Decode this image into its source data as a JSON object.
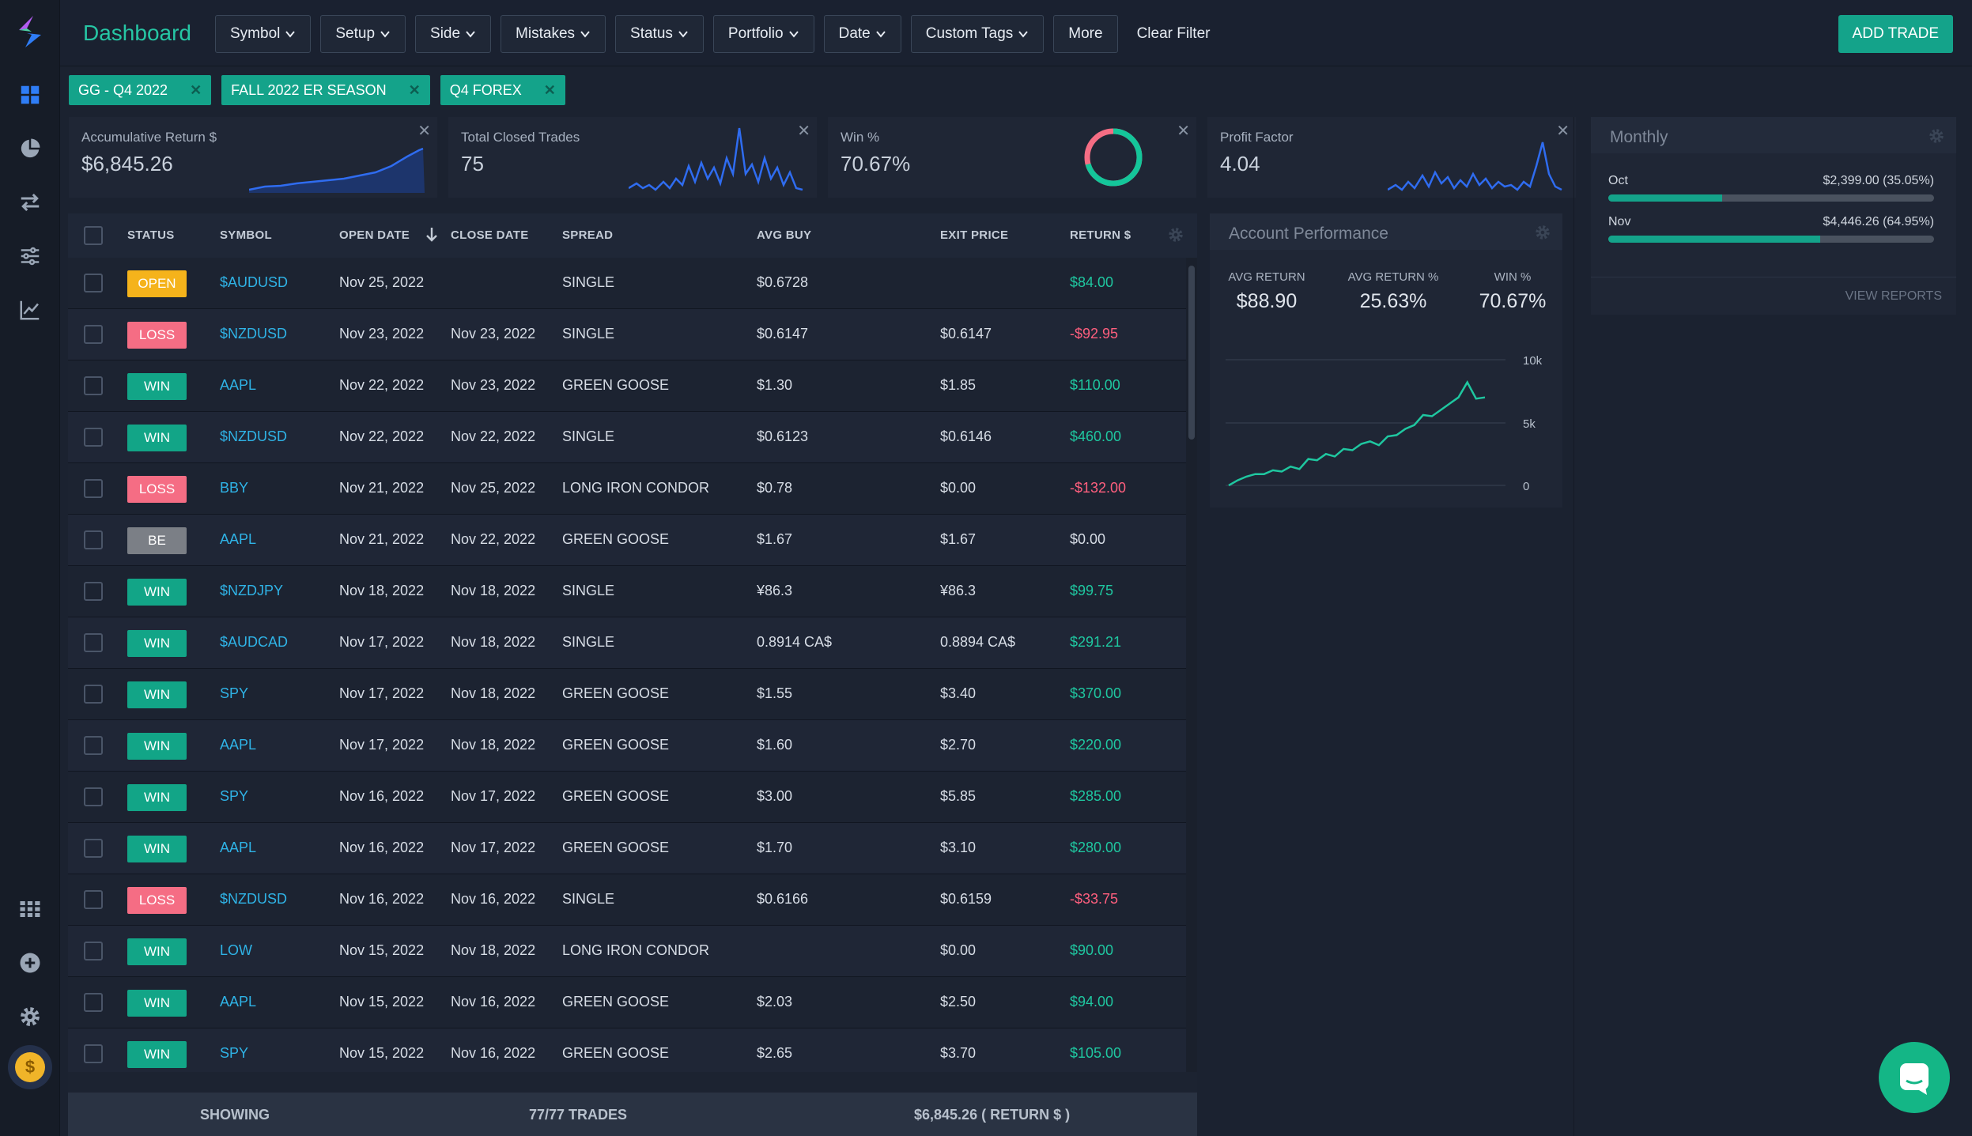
{
  "app": {
    "title": "Dashboard",
    "add_trade": "ADD TRADE",
    "clear_filter": "Clear Filter"
  },
  "filters": [
    "Symbol",
    "Setup",
    "Side",
    "Mistakes",
    "Status",
    "Portfolio",
    "Date",
    "Custom Tags",
    "More"
  ],
  "tags": [
    "GG - Q4 2022",
    "FALL 2022 ER SEASON",
    "Q4 FOREX"
  ],
  "cards": [
    {
      "label": "Accumulative Return $",
      "value": "$6,845.26"
    },
    {
      "label": "Total Closed Trades",
      "value": "75"
    },
    {
      "label": "Win %",
      "value": "70.67%"
    },
    {
      "label": "Profit Factor",
      "value": "4.04"
    }
  ],
  "win_pct": 70.67,
  "monthly": {
    "title": "Monthly",
    "rows": [
      {
        "name": "Oct",
        "amount": "$2,399.00 (35.05%)",
        "pct": 35.05
      },
      {
        "name": "Nov",
        "amount": "$4,446.26 (64.95%)",
        "pct": 64.95
      }
    ],
    "view_reports": "VIEW REPORTS"
  },
  "account": {
    "title": "Account Performance",
    "stats": [
      {
        "label": "AVG RETURN",
        "value": "$88.90"
      },
      {
        "label": "AVG RETURN %",
        "value": "25.63%"
      },
      {
        "label": "WIN %",
        "value": "70.67%"
      }
    ],
    "chart_data": {
      "type": "line",
      "y_ticks": [
        "10k",
        "5k",
        "0"
      ],
      "ylim": [
        0,
        10000
      ],
      "values": [
        0,
        400,
        700,
        900,
        900,
        1200,
        1100,
        1500,
        1300,
        2100,
        2000,
        2500,
        2300,
        2900,
        2800,
        3300,
        3500,
        3200,
        3900,
        4000,
        4500,
        4800,
        5600,
        5500,
        6000,
        6500,
        7000,
        8200,
        6900,
        7000
      ]
    }
  },
  "table": {
    "headers": {
      "status": "STATUS",
      "symbol": "SYMBOL",
      "open_date": "OPEN DATE",
      "close_date": "CLOSE DATE",
      "spread": "SPREAD",
      "avg_buy": "AVG BUY",
      "exit_price": "EXIT PRICE",
      "return": "RETURN $"
    },
    "rows": [
      {
        "status": "OPEN",
        "symbol": "$AUDUSD",
        "open": "Nov 25, 2022",
        "close": "",
        "spread": "SINGLE",
        "buy": "$0.6728",
        "exit": "",
        "ret": "$84.00",
        "sign": "pos"
      },
      {
        "status": "LOSS",
        "symbol": "$NZDUSD",
        "open": "Nov 23, 2022",
        "close": "Nov 23, 2022",
        "spread": "SINGLE",
        "buy": "$0.6147",
        "exit": "$0.6147",
        "ret": "-$92.95",
        "sign": "neg"
      },
      {
        "status": "WIN",
        "symbol": "AAPL",
        "open": "Nov 22, 2022",
        "close": "Nov 23, 2022",
        "spread": "GREEN GOOSE",
        "buy": "$1.30",
        "exit": "$1.85",
        "ret": "$110.00",
        "sign": "pos"
      },
      {
        "status": "WIN",
        "symbol": "$NZDUSD",
        "open": "Nov 22, 2022",
        "close": "Nov 22, 2022",
        "spread": "SINGLE",
        "buy": "$0.6123",
        "exit": "$0.6146",
        "ret": "$460.00",
        "sign": "pos"
      },
      {
        "status": "LOSS",
        "symbol": "BBY",
        "open": "Nov 21, 2022",
        "close": "Nov 25, 2022",
        "spread": "LONG IRON CONDOR",
        "buy": "$0.78",
        "exit": "$0.00",
        "ret": "-$132.00",
        "sign": "neg"
      },
      {
        "status": "BE",
        "symbol": "AAPL",
        "open": "Nov 21, 2022",
        "close": "Nov 22, 2022",
        "spread": "GREEN GOOSE",
        "buy": "$1.67",
        "exit": "$1.67",
        "ret": "$0.00",
        "sign": "zero"
      },
      {
        "status": "WIN",
        "symbol": "$NZDJPY",
        "open": "Nov 18, 2022",
        "close": "Nov 18, 2022",
        "spread": "SINGLE",
        "buy": "¥86.3",
        "exit": "¥86.3",
        "ret": "$99.75",
        "sign": "pos"
      },
      {
        "status": "WIN",
        "symbol": "$AUDCAD",
        "open": "Nov 17, 2022",
        "close": "Nov 18, 2022",
        "spread": "SINGLE",
        "buy": "0.8914 CA$",
        "exit": "0.8894 CA$",
        "ret": "$291.21",
        "sign": "pos"
      },
      {
        "status": "WIN",
        "symbol": "SPY",
        "open": "Nov 17, 2022",
        "close": "Nov 18, 2022",
        "spread": "GREEN GOOSE",
        "buy": "$1.55",
        "exit": "$3.40",
        "ret": "$370.00",
        "sign": "pos"
      },
      {
        "status": "WIN",
        "symbol": "AAPL",
        "open": "Nov 17, 2022",
        "close": "Nov 18, 2022",
        "spread": "GREEN GOOSE",
        "buy": "$1.60",
        "exit": "$2.70",
        "ret": "$220.00",
        "sign": "pos"
      },
      {
        "status": "WIN",
        "symbol": "SPY",
        "open": "Nov 16, 2022",
        "close": "Nov 17, 2022",
        "spread": "GREEN GOOSE",
        "buy": "$3.00",
        "exit": "$5.85",
        "ret": "$285.00",
        "sign": "pos"
      },
      {
        "status": "WIN",
        "symbol": "AAPL",
        "open": "Nov 16, 2022",
        "close": "Nov 17, 2022",
        "spread": "GREEN GOOSE",
        "buy": "$1.70",
        "exit": "$3.10",
        "ret": "$280.00",
        "sign": "pos"
      },
      {
        "status": "LOSS",
        "symbol": "$NZDUSD",
        "open": "Nov 16, 2022",
        "close": "Nov 16, 2022",
        "spread": "SINGLE",
        "buy": "$0.6166",
        "exit": "$0.6159",
        "ret": "-$33.75",
        "sign": "neg"
      },
      {
        "status": "WIN",
        "symbol": "LOW",
        "open": "Nov 15, 2022",
        "close": "Nov 18, 2022",
        "spread": "LONG IRON CONDOR",
        "buy": "",
        "exit": "$0.00",
        "ret": "$90.00",
        "sign": "pos"
      },
      {
        "status": "WIN",
        "symbol": "AAPL",
        "open": "Nov 15, 2022",
        "close": "Nov 16, 2022",
        "spread": "GREEN GOOSE",
        "buy": "$2.03",
        "exit": "$2.50",
        "ret": "$94.00",
        "sign": "pos"
      },
      {
        "status": "WIN",
        "symbol": "SPY",
        "open": "Nov 15, 2022",
        "close": "Nov 16, 2022",
        "spread": "GREEN GOOSE",
        "buy": "$2.65",
        "exit": "$3.70",
        "ret": "$105.00",
        "sign": "pos"
      }
    ],
    "footer": {
      "showing": "SHOWING",
      "count": "77/77 TRADES",
      "total": "$6,845.26 ( RETURN $ )"
    }
  },
  "colors": {
    "accent": "#14a38a",
    "win": "#12a587",
    "loss": "#f56d84",
    "open": "#f5b31b",
    "be": "#7b7f86",
    "link": "#2fb3e6"
  }
}
